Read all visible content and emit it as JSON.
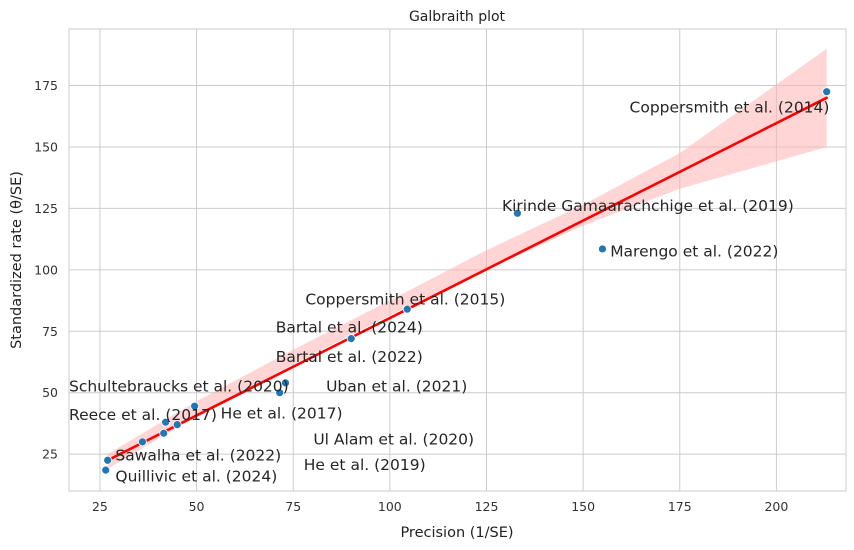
{
  "chart_data": {
    "type": "scatter",
    "title": "Galbraith plot",
    "xlabel": "Precision (1/SE)",
    "ylabel": "Standardized rate (θ/SE)",
    "xlim": [
      17,
      218
    ],
    "ylim": [
      10,
      198
    ],
    "xticks": [
      25,
      50,
      75,
      100,
      125,
      150,
      175,
      200
    ],
    "yticks": [
      25,
      50,
      75,
      100,
      125,
      150,
      175
    ],
    "grid": true,
    "colors": {
      "points": "#1f77b4",
      "regression_line": "#ff0000",
      "confidence_band": "#ffb3b3"
    },
    "points": [
      {
        "x": 213,
        "y": 172.5
      },
      {
        "x": 133,
        "y": 123
      },
      {
        "x": 155,
        "y": 108.5
      },
      {
        "x": 104.5,
        "y": 84
      },
      {
        "x": 90,
        "y": 72
      },
      {
        "x": 73,
        "y": 54
      },
      {
        "x": 71.5,
        "y": 50
      },
      {
        "x": 49.5,
        "y": 44.5
      },
      {
        "x": 45,
        "y": 37
      },
      {
        "x": 42,
        "y": 38
      },
      {
        "x": 41.5,
        "y": 33.5
      },
      {
        "x": 36,
        "y": 30
      },
      {
        "x": 27,
        "y": 22.5
      },
      {
        "x": 26.5,
        "y": 18.5
      }
    ],
    "labels": [
      {
        "text": "Coppersmith et al. (2014)",
        "x": 162,
        "y": 166,
        "anchor": "start"
      },
      {
        "text": "Kirinde Gamaarachchige et al. (2019)",
        "x": 129,
        "y": 126,
        "anchor": "start"
      },
      {
        "text": "Marengo et al. (2022)",
        "x": 157,
        "y": 107.5,
        "anchor": "start"
      },
      {
        "text": "Coppersmith et al. (2015)",
        "x": 104,
        "y": 88,
        "anchor": "middle"
      },
      {
        "text": "Bartal et al. (2024)",
        "x": 89.5,
        "y": 76.5,
        "anchor": "middle"
      },
      {
        "text": "Bartal et al. (2022)",
        "x": 89.5,
        "y": 64.5,
        "anchor": "middle"
      },
      {
        "text": "Schultebraucks et al. (2020)",
        "x": 17,
        "y": 52.5,
        "anchor": "start"
      },
      {
        "text": "Uban et al. (2021)",
        "x": 83.5,
        "y": 52.5,
        "anchor": "start"
      },
      {
        "text": "Reece et al. (2017)",
        "x": 17,
        "y": 41,
        "anchor": "start"
      },
      {
        "text": "He et al. (2017)",
        "x": 72,
        "y": 41.5,
        "anchor": "middle"
      },
      {
        "text": "Ul Alam et al. (2020)",
        "x": 101,
        "y": 31,
        "anchor": "middle"
      },
      {
        "text": "Sawalha et al. (2022)",
        "x": 29,
        "y": 24.5,
        "anchor": "start"
      },
      {
        "text": "He et al. (2019)",
        "x": 93.5,
        "y": 20.5,
        "anchor": "middle"
      },
      {
        "text": "Quillivic et al. (2024)",
        "x": 29,
        "y": 16,
        "anchor": "start"
      }
    ],
    "regression": {
      "x": [
        27,
        213
      ],
      "y": [
        22.5,
        170
      ]
    },
    "confidence_band": {
      "x": [
        27,
        50,
        75,
        100,
        125,
        150,
        175,
        213
      ],
      "lower": [
        19,
        40.5,
        61.5,
        81.5,
        100,
        118,
        133,
        150
      ],
      "upper": [
        25,
        46.5,
        67.5,
        87.5,
        108,
        126.5,
        147.5,
        190
      ]
    }
  }
}
